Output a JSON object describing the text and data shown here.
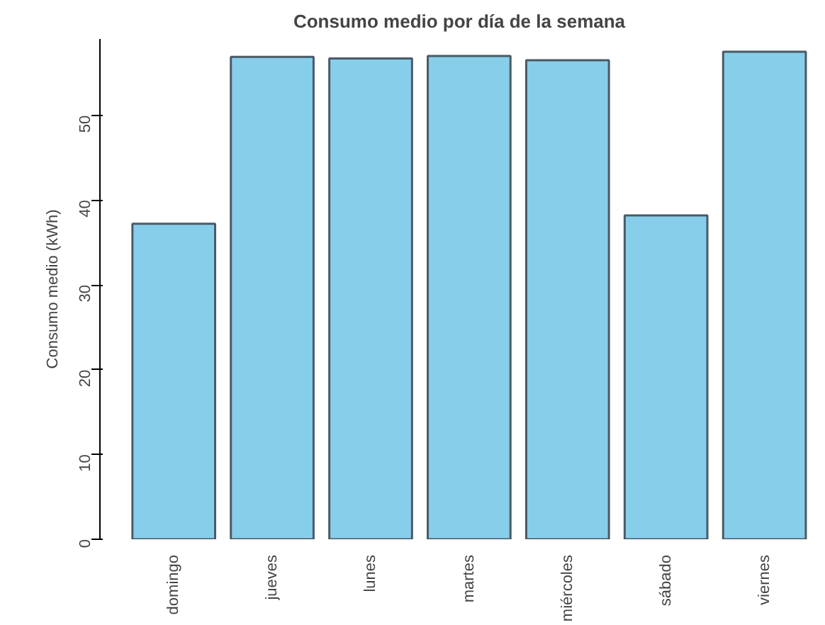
{
  "chart_data": {
    "type": "bar",
    "title": "Consumo medio por día de la semana",
    "ylabel": "Consumo medio (kWh)",
    "categories": [
      "domingo",
      "jueves",
      "lunes",
      "martes",
      "miércoles",
      "sábado",
      "viernes"
    ],
    "values": [
      37.2,
      56.9,
      56.7,
      57.0,
      56.5,
      38.2,
      57.5
    ],
    "color": "#87ceeb",
    "ylim": [
      0,
      59
    ],
    "yticks": [
      0,
      10,
      20,
      30,
      40,
      50
    ],
    "grid": false
  }
}
